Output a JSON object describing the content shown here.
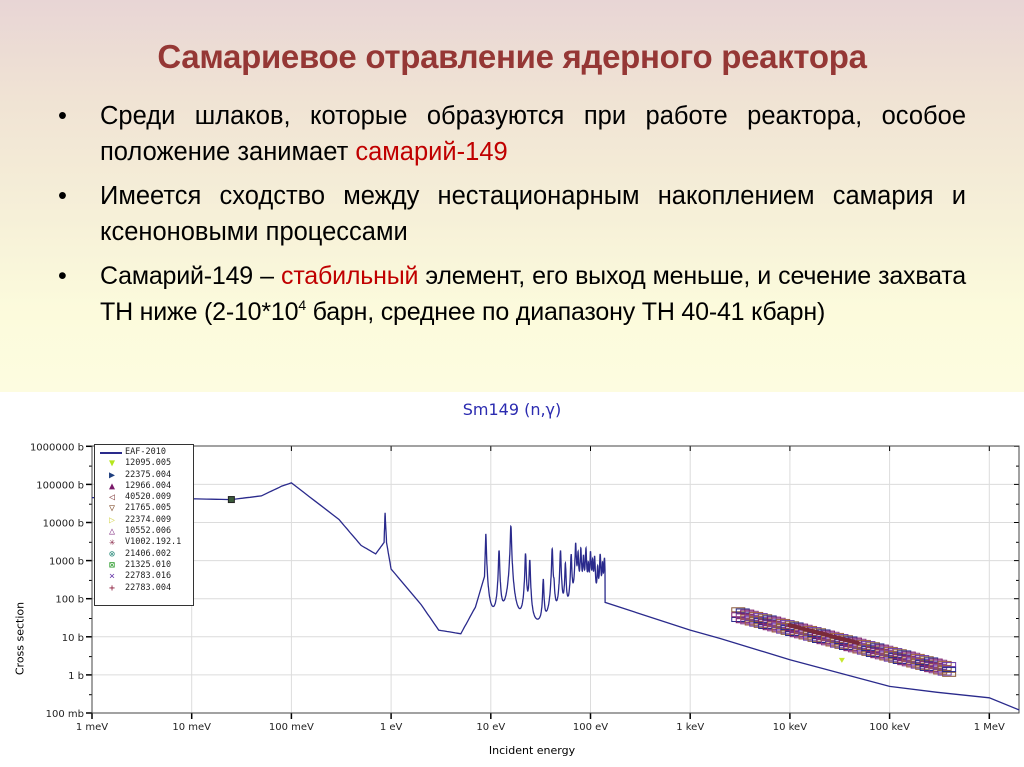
{
  "slide": {
    "title": "Самариевое отравление ядерного реактора",
    "bullets": [
      {
        "parts": [
          {
            "text": "Среди шлаков, которые образуются при работе реактора, особое положение занимает ",
            "highlight": false
          },
          {
            "text": "самарий-149",
            "highlight": true
          }
        ]
      },
      {
        "parts": [
          {
            "text": "Имеется сходство между нестационарным накоплением самария и ксеноновыми процессами",
            "highlight": false
          }
        ]
      },
      {
        "parts": [
          {
            "text": "Самарий-149 – ",
            "highlight": false
          },
          {
            "text": "стабильный",
            "highlight": true
          },
          {
            "text": " элемент, его выход меньше, и сечение захвата ТН ниже (2-10*10",
            "highlight": false
          },
          {
            "text": "4",
            "superscript": true
          },
          {
            "text": " барн, среднее по диапазону ТН 40-41 кбарн)",
            "highlight": false
          }
        ]
      }
    ],
    "bullet_symbol": "•",
    "colors": {
      "title": "#953735",
      "highlight": "#c00000",
      "text": "#000000",
      "background_top": "#e8d5d5",
      "background_bottom": "#fdfce0"
    }
  },
  "chart_data": {
    "type": "line",
    "title": "Sm149 (n,γ)",
    "xlabel": "Incident energy",
    "ylabel": "Cross section",
    "xscale": "log",
    "yscale": "log",
    "x_ticks": [
      "1 meV",
      "10 meV",
      "100 meV",
      "1 eV",
      "10 eV",
      "100 eV",
      "1 keV",
      "10 keV",
      "100 keV",
      "1 MeV"
    ],
    "y_ticks": [
      "1000000 b",
      "100000 b",
      "10000 b",
      "1000 b",
      "100 b",
      "10 b",
      "1 b",
      "100 mb"
    ],
    "xlim_eV": [
      0.001,
      2000000
    ],
    "ylim_b": [
      0.1,
      1000000
    ],
    "grid": true,
    "legend_position": "upper-left",
    "legend": [
      {
        "label": "EAF-2010",
        "symbol": "line",
        "color": "#2a2a8c"
      },
      {
        "label": "12095.005",
        "symbol": "▼",
        "color": "#b5e61d"
      },
      {
        "label": "22375.004",
        "symbol": "▶",
        "color": "#1f3f7f"
      },
      {
        "label": "12966.004",
        "symbol": "▲",
        "color": "#7a1a6a"
      },
      {
        "label": "40520.009",
        "symbol": "◁",
        "color": "#8a4a4a"
      },
      {
        "label": "21765.005",
        "symbol": "▽",
        "color": "#8a5a3a"
      },
      {
        "label": "22374.009",
        "symbol": "▷",
        "color": "#d8d860"
      },
      {
        "label": "10552.006",
        "symbol": "△",
        "color": "#8a3a8a"
      },
      {
        "label": "V1002.192.1",
        "symbol": "✳",
        "color": "#8a2a4a"
      },
      {
        "label": "21406.002",
        "symbol": "⊗",
        "color": "#2a8a7a"
      },
      {
        "label": "21325.010",
        "symbol": "⊠",
        "color": "#2a9a2a"
      },
      {
        "label": "22783.016",
        "symbol": "×",
        "color": "#6a3aaa"
      },
      {
        "label": "22783.004",
        "symbol": "+",
        "color": "#8a1a3a"
      }
    ],
    "series": [
      {
        "name": "EAF-2010",
        "x_eV": [
          0.001,
          0.003,
          0.01,
          0.025,
          0.05,
          0.08,
          0.1,
          0.3,
          0.5,
          0.7,
          0.85,
          0.87,
          0.9,
          1.0,
          2.0,
          3.0,
          5.0,
          7.0,
          8.9,
          10,
          15,
          25,
          50,
          100,
          140,
          1000,
          2000,
          10000,
          100000,
          300000,
          1000000,
          2000000
        ],
        "y_b": [
          45000,
          44000,
          42000,
          40000,
          50000,
          90000,
          110000,
          12000,
          2500,
          1500,
          3000,
          18000,
          3000,
          600,
          70,
          15,
          12,
          60,
          500,
          200,
          40,
          15,
          8,
          12,
          80,
          15,
          9,
          2.5,
          0.5,
          0.35,
          0.25,
          0.12
        ]
      }
    ],
    "resonance_region_eV": [
      8.9,
      140
    ],
    "experimental_data_region_eV": [
      3000,
      400000
    ],
    "colors": {
      "curve": "#2a2a8c",
      "title": "#2b2bb0",
      "grid": "#dcdcdc"
    }
  }
}
